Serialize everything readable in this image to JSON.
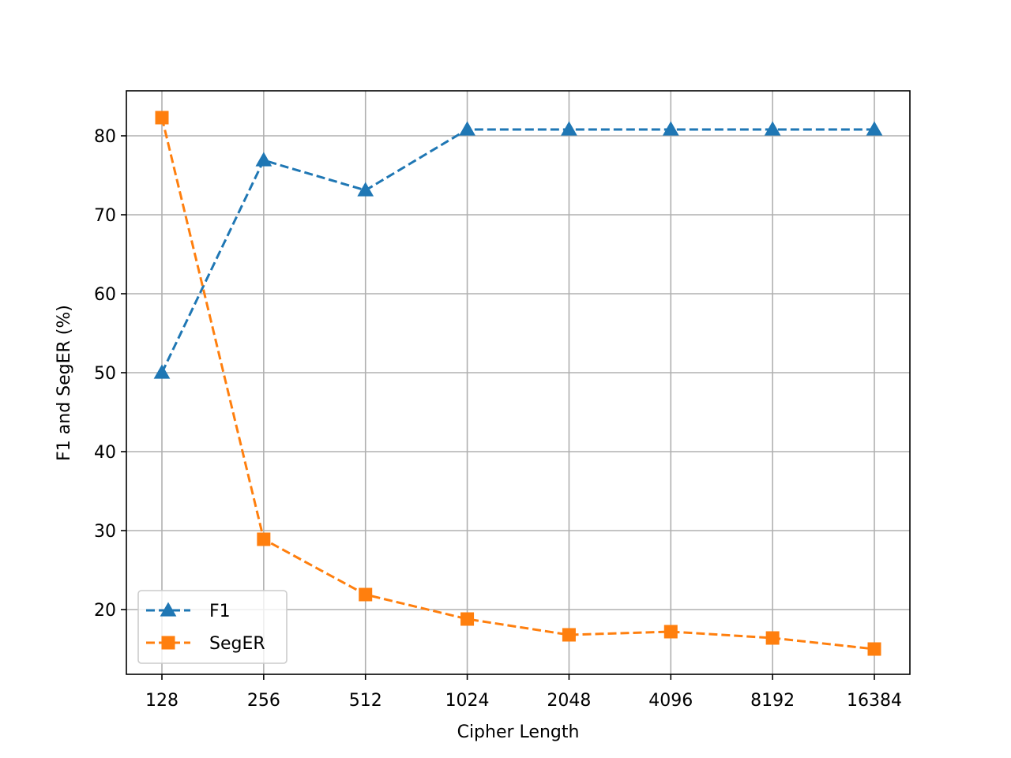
{
  "chart_data": {
    "type": "line",
    "xlabel": "Cipher Length",
    "ylabel": "F1 and SegER (%)",
    "categories": [
      "128",
      "256",
      "512",
      "1024",
      "2048",
      "4096",
      "8192",
      "16384"
    ],
    "x_scale": "log2",
    "ylim": [
      11.8,
      85.7
    ],
    "yticks": [
      20,
      30,
      40,
      50,
      60,
      70,
      80
    ],
    "grid": true,
    "legend_position": "lower-left",
    "series": [
      {
        "name": "F1",
        "values": [
          50.0,
          76.9,
          73.1,
          80.8,
          80.8,
          80.8,
          80.8,
          80.8
        ],
        "color": "#1f77b4",
        "marker": "triangle",
        "linestyle": "dashed"
      },
      {
        "name": "SegER",
        "values": [
          82.3,
          28.9,
          21.9,
          18.8,
          16.8,
          17.2,
          16.4,
          15.0
        ],
        "color": "#ff7f0e",
        "marker": "square",
        "linestyle": "dashed"
      }
    ]
  }
}
